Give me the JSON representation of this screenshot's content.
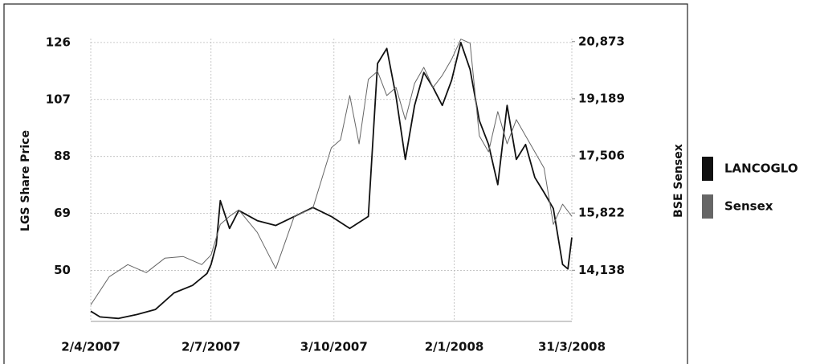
{
  "chart_data": {
    "type": "line",
    "ylabel": "LGS Share Price",
    "y2label": "BSE Sensex",
    "xlim": [
      "2007-04-02",
      "2008-03-31"
    ],
    "xticks": [
      {
        "value": "2007-04-02",
        "label": "2/4/2007"
      },
      {
        "value": "2007-07-02",
        "label": "2/7/2007"
      },
      {
        "value": "2007-10-03",
        "label": "3/10/2007"
      },
      {
        "value": "2008-01-02",
        "label": "2/1/2008"
      },
      {
        "value": "2008-03-31",
        "label": "31/3/2008"
      }
    ],
    "ylim": [
      33,
      127.3
    ],
    "yticks": [
      50,
      69,
      88,
      107,
      126
    ],
    "y2lim": [
      12631,
      20962
    ],
    "y2ticks": [
      {
        "value": 14138,
        "label": "14,138"
      },
      {
        "value": 15822,
        "label": "15,822"
      },
      {
        "value": 17506,
        "label": "17,506"
      },
      {
        "value": 19189,
        "label": "19,189"
      },
      {
        "value": 20873,
        "label": "20,873"
      }
    ],
    "grid": true,
    "legend": "right",
    "series": [
      {
        "name": "LANCOGLO",
        "color": "#111111",
        "axis": "y",
        "x": [
          "2007-04-02",
          "2007-04-09",
          "2007-04-23",
          "2007-05-07",
          "2007-05-21",
          "2007-06-04",
          "2007-06-18",
          "2007-06-29",
          "2007-07-02",
          "2007-07-06",
          "2007-07-09",
          "2007-07-16",
          "2007-07-23",
          "2007-08-06",
          "2007-08-20",
          "2007-09-03",
          "2007-09-17",
          "2007-10-01",
          "2007-10-15",
          "2007-10-29",
          "2007-11-05",
          "2007-11-12",
          "2007-11-19",
          "2007-11-26",
          "2007-12-03",
          "2007-12-10",
          "2007-12-17",
          "2007-12-24",
          "2007-12-31",
          "2008-01-07",
          "2008-01-14",
          "2008-01-21",
          "2008-01-28",
          "2008-02-04",
          "2008-02-11",
          "2008-02-18",
          "2008-02-25",
          "2008-03-03",
          "2008-03-10",
          "2008-03-17",
          "2008-03-24",
          "2008-03-28",
          "2008-03-31"
        ],
        "values": [
          36.4,
          34.5,
          34,
          35.3,
          37,
          42.5,
          45,
          49,
          52,
          58.6,
          73.3,
          64,
          70,
          66.6,
          65,
          68,
          71,
          68,
          64,
          68,
          119,
          124,
          108,
          87,
          105,
          116,
          111,
          105,
          113.4,
          126,
          117,
          100,
          92,
          78.6,
          105,
          87,
          92,
          81,
          76,
          70.6,
          52,
          50.5,
          61
        ]
      },
      {
        "name": "Sensex",
        "color": "#666666",
        "axis": "y2",
        "x": [
          "2007-04-02",
          "2007-04-16",
          "2007-04-30",
          "2007-05-14",
          "2007-05-28",
          "2007-06-11",
          "2007-06-25",
          "2007-07-02",
          "2007-07-09",
          "2007-07-16",
          "2007-07-23",
          "2007-08-06",
          "2007-08-20",
          "2007-09-03",
          "2007-09-17",
          "2007-10-01",
          "2007-10-08",
          "2007-10-15",
          "2007-10-22",
          "2007-10-29",
          "2007-11-05",
          "2007-11-12",
          "2007-11-19",
          "2007-11-26",
          "2007-12-03",
          "2007-12-10",
          "2007-12-17",
          "2007-12-24",
          "2007-12-31",
          "2008-01-07",
          "2008-01-14",
          "2008-01-21",
          "2008-01-28",
          "2008-02-04",
          "2008-02-11",
          "2008-02-18",
          "2008-02-25",
          "2008-03-03",
          "2008-03-10",
          "2008-03-17",
          "2008-03-24",
          "2008-03-31"
        ],
        "values": [
          13118,
          13948,
          14304,
          14067,
          14494,
          14541,
          14304,
          14589,
          15490,
          15727,
          15917,
          15253,
          14185,
          15727,
          15964,
          17743,
          17980,
          19285,
          17862,
          19760,
          19997,
          19285,
          19522,
          18574,
          19641,
          20115,
          19522,
          19878,
          20352,
          20945,
          20827,
          18099,
          17625,
          18811,
          17862,
          18574,
          18099,
          17625,
          17150,
          15490,
          16083,
          15727
        ]
      }
    ]
  }
}
